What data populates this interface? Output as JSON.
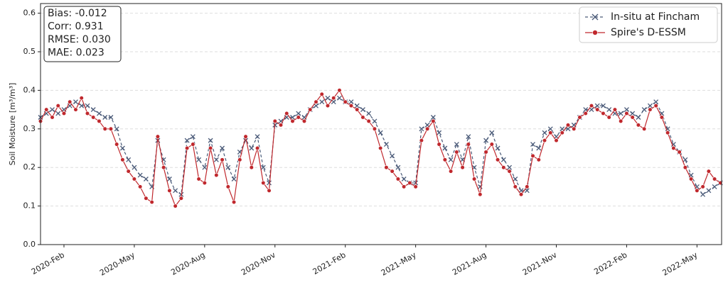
{
  "chart_data": {
    "type": "line",
    "ylabel": "Soil Moisture [m³/m³]",
    "annotations": [
      "Bias: -0.012",
      "Corr: 0.931",
      "RMSE: 0.030",
      "MAE: 0.023"
    ],
    "xlim": [
      0,
      29.05
    ],
    "xticks": [
      {
        "value": 1,
        "label": "2020-Feb"
      },
      {
        "value": 4,
        "label": "2020-May"
      },
      {
        "value": 7,
        "label": "2020-Aug"
      },
      {
        "value": 10,
        "label": "2020-Nov"
      },
      {
        "value": 13,
        "label": "2021-Feb"
      },
      {
        "value": 16,
        "label": "2021-May"
      },
      {
        "value": 19,
        "label": "2021-Aug"
      },
      {
        "value": 22,
        "label": "2021-Nov"
      },
      {
        "value": 25,
        "label": "2022-Feb"
      },
      {
        "value": 28,
        "label": "2022-May"
      }
    ],
    "ylim": [
      0,
      0.625
    ],
    "yticks": [
      {
        "value": 0,
        "label": "0.0"
      },
      0.1,
      0.2,
      0.3,
      0.4,
      0.5,
      0.6
    ],
    "grid": true,
    "legend": "upper right",
    "x": [
      0,
      0.25,
      0.5,
      0.75,
      1,
      1.25,
      1.5,
      1.75,
      2,
      2.25,
      2.5,
      2.75,
      3,
      3.25,
      3.5,
      3.75,
      4,
      4.25,
      4.5,
      4.75,
      5,
      5.25,
      5.5,
      5.75,
      6,
      6.25,
      6.5,
      6.75,
      7,
      7.25,
      7.5,
      7.75,
      8,
      8.25,
      8.5,
      8.75,
      9,
      9.25,
      9.5,
      9.75,
      10,
      10.25,
      10.5,
      10.75,
      11,
      11.25,
      11.5,
      11.75,
      12,
      12.25,
      12.5,
      12.75,
      13,
      13.25,
      13.5,
      13.75,
      14,
      14.25,
      14.5,
      14.75,
      15,
      15.25,
      15.5,
      15.75,
      16,
      16.25,
      16.5,
      16.75,
      17,
      17.25,
      17.5,
      17.75,
      18,
      18.25,
      18.5,
      18.75,
      19,
      19.25,
      19.5,
      19.75,
      20,
      20.25,
      20.5,
      20.75,
      21,
      21.25,
      21.5,
      21.75,
      22,
      22.25,
      22.5,
      22.75,
      23,
      23.25,
      23.5,
      23.75,
      24,
      24.25,
      24.5,
      24.75,
      25,
      25.25,
      25.5,
      25.75,
      26,
      26.25,
      26.5,
      26.75,
      27,
      27.25,
      27.5,
      27.75,
      28,
      28.25,
      28.5,
      28.75,
      29
    ],
    "series": [
      {
        "name": "In-situ at Fincham",
        "color": "#4a5a78",
        "marker": "x",
        "linestyle": "dashed",
        "values": [
          0.33,
          0.34,
          0.35,
          0.34,
          0.35,
          0.36,
          0.37,
          0.36,
          0.36,
          0.35,
          0.34,
          0.33,
          0.33,
          0.3,
          0.25,
          0.22,
          0.2,
          0.18,
          0.17,
          0.15,
          0.27,
          0.22,
          0.17,
          0.14,
          0.13,
          0.27,
          0.28,
          0.22,
          0.2,
          0.27,
          0.22,
          0.25,
          0.2,
          0.17,
          0.24,
          0.27,
          0.25,
          0.28,
          0.2,
          0.16,
          0.31,
          0.32,
          0.33,
          0.33,
          0.34,
          0.33,
          0.35,
          0.36,
          0.37,
          0.38,
          0.37,
          0.38,
          0.37,
          0.37,
          0.36,
          0.35,
          0.34,
          0.32,
          0.29,
          0.26,
          0.23,
          0.2,
          0.17,
          0.16,
          0.16,
          0.3,
          0.31,
          0.33,
          0.29,
          0.25,
          0.22,
          0.26,
          0.22,
          0.28,
          0.2,
          0.15,
          0.27,
          0.29,
          0.25,
          0.22,
          0.2,
          0.17,
          0.14,
          0.14,
          0.26,
          0.25,
          0.29,
          0.3,
          0.28,
          0.3,
          0.3,
          0.31,
          0.33,
          0.35,
          0.35,
          0.36,
          0.36,
          0.35,
          0.34,
          0.34,
          0.35,
          0.34,
          0.33,
          0.35,
          0.36,
          0.37,
          0.34,
          0.3,
          0.26,
          0.24,
          0.22,
          0.18,
          0.15,
          0.13,
          0.14,
          0.15,
          0.16
        ]
      },
      {
        "name": "Spire's D-ESSM",
        "color": "#c0282d",
        "marker": "o",
        "linestyle": "solid",
        "values": [
          0.32,
          0.35,
          0.33,
          0.36,
          0.34,
          0.37,
          0.35,
          0.38,
          0.34,
          0.33,
          0.32,
          0.3,
          0.3,
          0.26,
          0.22,
          0.19,
          0.17,
          0.15,
          0.12,
          0.11,
          0.28,
          0.2,
          0.14,
          0.1,
          0.12,
          0.25,
          0.26,
          0.17,
          0.16,
          0.25,
          0.18,
          0.22,
          0.15,
          0.11,
          0.22,
          0.28,
          0.2,
          0.25,
          0.16,
          0.14,
          0.32,
          0.31,
          0.34,
          0.32,
          0.33,
          0.32,
          0.35,
          0.37,
          0.39,
          0.36,
          0.38,
          0.4,
          0.37,
          0.36,
          0.35,
          0.33,
          0.32,
          0.3,
          0.25,
          0.2,
          0.19,
          0.17,
          0.15,
          0.16,
          0.15,
          0.27,
          0.3,
          0.32,
          0.26,
          0.22,
          0.19,
          0.24,
          0.2,
          0.26,
          0.17,
          0.13,
          0.24,
          0.26,
          0.22,
          0.2,
          0.19,
          0.15,
          0.13,
          0.15,
          0.23,
          0.22,
          0.27,
          0.29,
          0.27,
          0.29,
          0.31,
          0.3,
          0.33,
          0.34,
          0.36,
          0.35,
          0.34,
          0.33,
          0.35,
          0.32,
          0.34,
          0.33,
          0.31,
          0.3,
          0.35,
          0.36,
          0.33,
          0.29,
          0.25,
          0.24,
          0.2,
          0.17,
          0.14,
          0.15,
          0.19,
          0.17,
          0.16
        ]
      }
    ]
  }
}
